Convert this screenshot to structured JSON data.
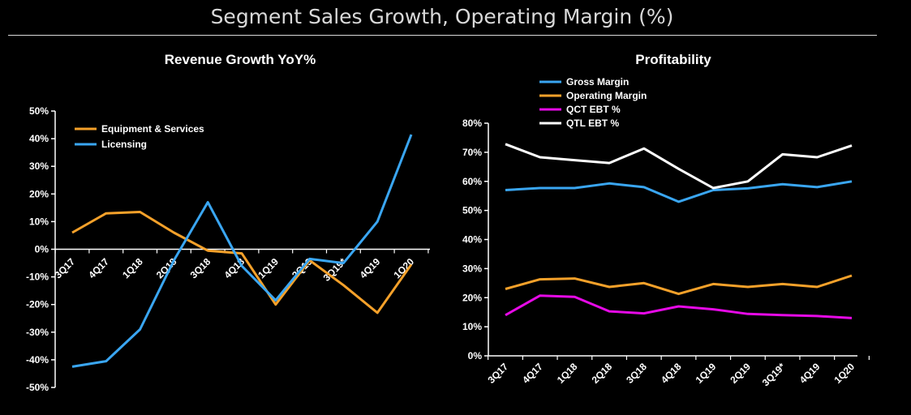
{
  "page": {
    "title": "Segment Sales Growth, Operating Margin (%)"
  },
  "chart_data": [
    {
      "type": "line",
      "title": "Revenue Growth YoY%",
      "categories": [
        "3Q17",
        "4Q17",
        "1Q18",
        "2Q18",
        "3Q18",
        "4Q18",
        "1Q19",
        "2Q19",
        "3Q19*",
        "4Q19",
        "1Q20"
      ],
      "ylim": [
        -50,
        50
      ],
      "yticks": [
        50,
        40,
        30,
        20,
        10,
        0,
        -10,
        -20,
        -30,
        -40,
        -50
      ],
      "ytick_labels": [
        "50%",
        "40%",
        "30%",
        "20%",
        "10%",
        "0%",
        "-10%",
        "-20%",
        "-30%",
        "-40%",
        "-50%"
      ],
      "legend_position": "top-left",
      "series": [
        {
          "name": "Equipment & Services",
          "color": "#f5a12a",
          "values": [
            6,
            13,
            13.5,
            6,
            -0.5,
            -1.5,
            -20,
            -4,
            -13,
            -23,
            -5.5
          ]
        },
        {
          "name": "Licensing",
          "color": "#3aa6f2",
          "values": [
            -42.5,
            -40.5,
            -29,
            -4,
            17,
            -6,
            -18.5,
            -3.5,
            -5,
            10,
            41.5
          ]
        }
      ]
    },
    {
      "type": "line",
      "title": "Profitability",
      "categories": [
        "3Q17",
        "4Q17",
        "1Q18",
        "2Q18",
        "3Q18",
        "4Q18",
        "1Q19",
        "2Q19",
        "3Q19*",
        "4Q19",
        "1Q20"
      ],
      "ylim": [
        0,
        80
      ],
      "yticks": [
        80,
        70,
        60,
        50,
        40,
        30,
        20,
        10,
        0
      ],
      "ytick_labels": [
        "80%",
        "70%",
        "60%",
        "50%",
        "40%",
        "30%",
        "20%",
        "10%",
        "0%"
      ],
      "legend_position": "top-left",
      "series": [
        {
          "name": "Gross Margin",
          "color": "#3aa6f2",
          "values": [
            57,
            57.7,
            57.7,
            59.3,
            58,
            53,
            57,
            57.6,
            59,
            58,
            60
          ]
        },
        {
          "name": "Operating Margin",
          "color": "#f5a12a",
          "values": [
            23,
            26.3,
            26.6,
            23.7,
            25,
            21.3,
            24.7,
            23.7,
            24.7,
            23.7,
            27.6
          ]
        },
        {
          "name": "QCT EBT %",
          "color": "#e60ae6",
          "values": [
            14,
            20.7,
            20.3,
            15.3,
            14.6,
            17,
            16,
            14.4,
            14,
            13.7,
            13
          ]
        },
        {
          "name": "QTL EBT %",
          "color": "#ffffff",
          "values": [
            72.8,
            68.3,
            67.3,
            66.3,
            71.3,
            64.3,
            57.7,
            60,
            69.3,
            68.3,
            72.3
          ]
        }
      ]
    }
  ]
}
